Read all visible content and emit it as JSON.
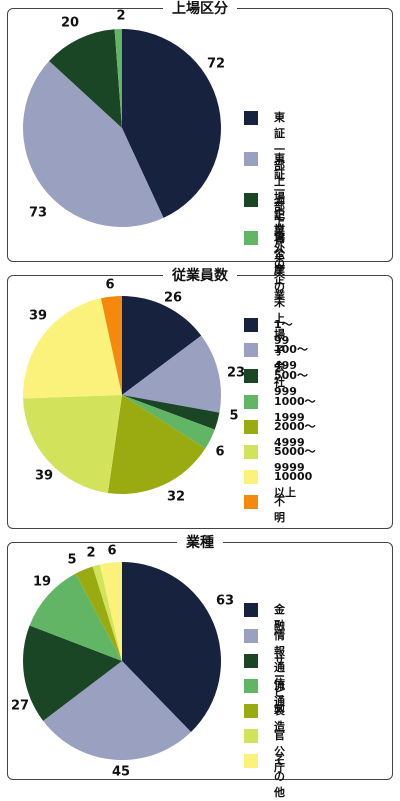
{
  "colors": {
    "navy": "#17223f",
    "lavender": "#9aa0bf",
    "darkgreen": "#1a4626",
    "green": "#63b566",
    "olive": "#9aab12",
    "lime": "#d2e25a",
    "yellow": "#fbf27c",
    "orange": "#f5890d"
  },
  "chart_data": [
    {
      "type": "pie",
      "title": "上場区分",
      "series": [
        {
          "name": "東証一部上場企業",
          "value": 72,
          "color": "#17223f"
        },
        {
          "name": "東証一部上場企業の\n未上場子会社",
          "value": 73,
          "color": "#9aa0bf"
        },
        {
          "name": "上記以外の企業",
          "value": 20,
          "color": "#1a4626"
        },
        {
          "name": "官公庁",
          "value": 2,
          "color": "#63b566"
        }
      ],
      "legend": "right"
    },
    {
      "type": "pie",
      "title": "従業員数",
      "series": [
        {
          "name": "1〜99",
          "value": 26,
          "color": "#17223f"
        },
        {
          "name": "100〜499",
          "value": 23,
          "color": "#9aa0bf"
        },
        {
          "name": "500〜999",
          "value": 5,
          "color": "#1a4626"
        },
        {
          "name": "1000〜1999",
          "value": 6,
          "color": "#63b566"
        },
        {
          "name": "2000〜4999",
          "value": 32,
          "color": "#9aab12"
        },
        {
          "name": "5000〜9999",
          "value": 39,
          "color": "#d2e25a"
        },
        {
          "name": "10000以上",
          "value": 39,
          "color": "#fbf27c"
        },
        {
          "name": "不明",
          "value": 6,
          "color": "#f5890d"
        }
      ],
      "legend": "right"
    },
    {
      "type": "pie",
      "title": "業種",
      "series": [
        {
          "name": "金融",
          "value": 63,
          "color": "#17223f"
        },
        {
          "name": "情報通信",
          "value": 45,
          "color": "#9aa0bf"
        },
        {
          "name": "サービス",
          "value": 27,
          "color": "#1a4626"
        },
        {
          "name": "流通",
          "value": 19,
          "color": "#63b566"
        },
        {
          "name": "製造",
          "value": 5,
          "color": "#9aab12"
        },
        {
          "name": "官公庁",
          "value": 2,
          "color": "#d2e25a"
        },
        {
          "name": "その他",
          "value": 6,
          "color": "#fbf27c"
        }
      ],
      "legend": "right"
    }
  ]
}
